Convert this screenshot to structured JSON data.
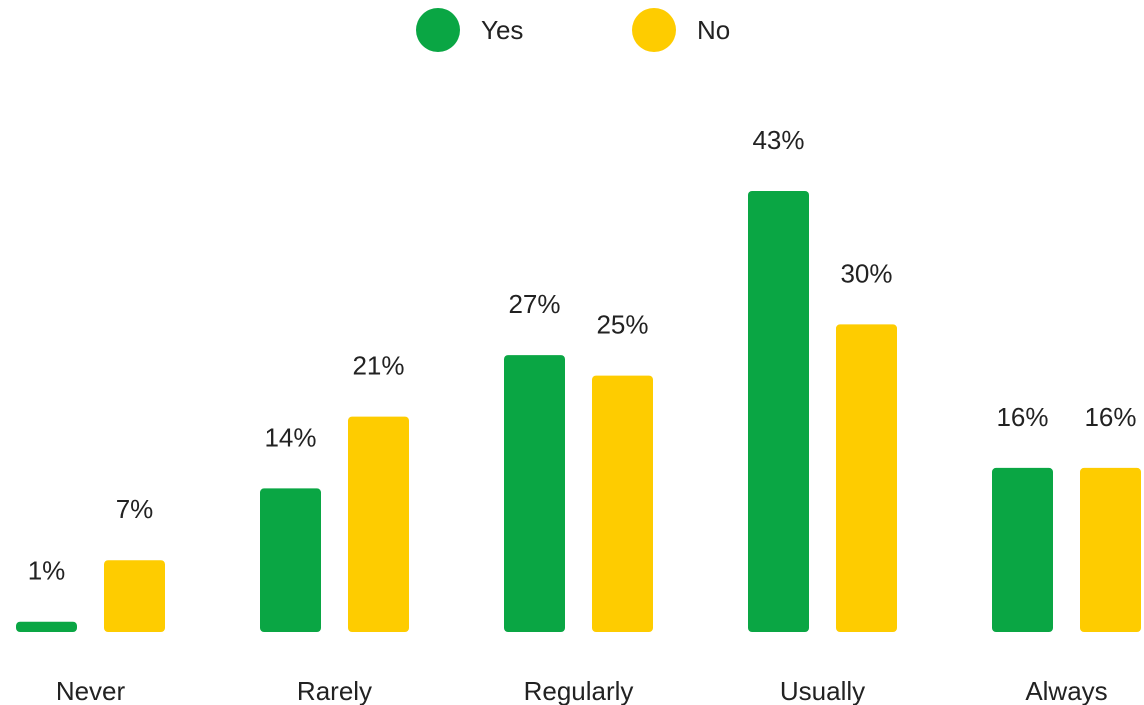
{
  "chart_data": {
    "type": "bar",
    "categories": [
      "Never",
      "Rarely",
      "Regularly",
      "Usually",
      "Always"
    ],
    "series": [
      {
        "name": "Yes",
        "color": "#0aa644",
        "values": [
          1,
          14,
          27,
          43,
          16
        ],
        "labels": [
          "1%",
          "14%",
          "27%",
          "43%",
          "16%"
        ]
      },
      {
        "name": "No",
        "color": "#fecc00",
        "values": [
          7,
          21,
          25,
          30,
          16
        ],
        "labels": [
          "7%",
          "21%",
          "25%",
          "30%",
          "16%"
        ]
      }
    ],
    "ylim": [
      0,
      43
    ],
    "unit": "%",
    "grid": false,
    "legend": "top-center"
  }
}
